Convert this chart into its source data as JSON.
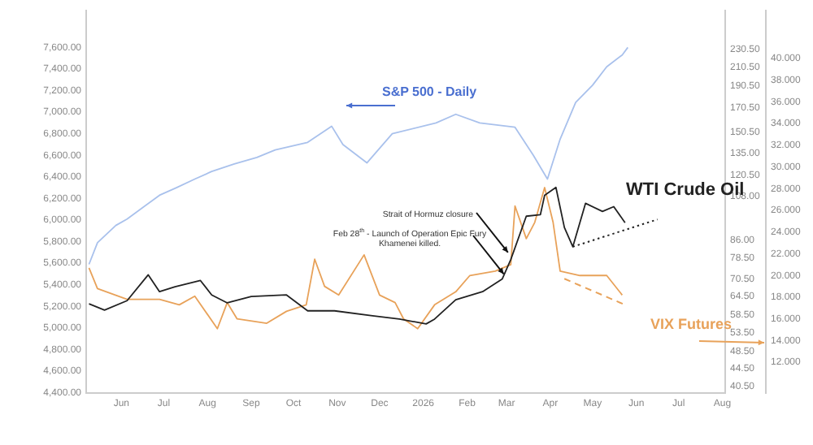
{
  "chart_data": {
    "type": "line",
    "marker": "none",
    "legend": false,
    "grid": false,
    "log": "y2",
    "annotations": [
      {
        "text": "Strait of Hormuz closure",
        "x": "2026-03-02",
        "y": 5700
      },
      {
        "text": "Feb 28$^{th}$ - Launch of Operation Epic Fury\nKhamenei killed.",
        "x": "2026-02-27",
        "y": 5500
      }
    ],
    "xlim": [
      "2025-05-07",
      "2026-08-03"
    ],
    "xticks": [
      {
        "value": "2025-06-01",
        "label": "Jun"
      },
      {
        "value": "2025-07-01",
        "label": "Jul"
      },
      {
        "value": "2025-08-01",
        "label": "Aug"
      },
      {
        "value": "2025-09-01",
        "label": "Sep"
      },
      {
        "value": "2025-10-01",
        "label": "Oct"
      },
      {
        "value": "2025-11-01",
        "label": "Nov"
      },
      {
        "value": "2025-12-01",
        "label": "Dec"
      },
      {
        "value": "2026-01-01",
        "label": "2026"
      },
      {
        "value": "2026-02-01",
        "label": "Feb"
      },
      {
        "value": "2026-03-01",
        "label": "Mar"
      },
      {
        "value": "2026-04-01",
        "label": "Apr"
      },
      {
        "value": "2026-05-01",
        "label": "May"
      },
      {
        "value": "2026-06-01",
        "label": "Jun"
      },
      {
        "value": "2026-07-01",
        "label": "Jul"
      },
      {
        "value": "2026-08-01",
        "label": "Aug"
      }
    ],
    "ylim": [
      4400,
      7940
    ],
    "yticks": [
      {
        "value": 4400,
        "label": "4,400.00"
      },
      {
        "value": 4600,
        "label": "4,600.00"
      },
      {
        "value": 4800,
        "label": "4,800.00"
      },
      {
        "value": 5000,
        "label": "5,000.00"
      },
      {
        "value": 5200,
        "label": "5,200.00"
      },
      {
        "value": 5400,
        "label": "5,400.00"
      },
      {
        "value": 5600,
        "label": "5,600.00"
      },
      {
        "value": 5800,
        "label": "5,800.00"
      },
      {
        "value": 6000,
        "label": "6,000.00"
      },
      {
        "value": 6200,
        "label": "6,200.00"
      },
      {
        "value": 6400,
        "label": "6,400.00"
      },
      {
        "value": 6600,
        "label": "6,600.00"
      },
      {
        "value": 6800,
        "label": "6,800.00"
      },
      {
        "value": 7000,
        "label": "7,000.00"
      },
      {
        "value": 7200,
        "label": "7,200.00"
      },
      {
        "value": 7400,
        "label": "7,400.00"
      },
      {
        "value": 7600,
        "label": "7,600.00"
      }
    ],
    "y2lim": [
      39.2,
      281
    ],
    "y2ticks": [
      {
        "value": 40.5,
        "label": "40.50"
      },
      {
        "value": 44.5,
        "label": "44.50"
      },
      {
        "value": 48.5,
        "label": "48.50"
      },
      {
        "value": 53.5,
        "label": "53.50"
      },
      {
        "value": 58.5,
        "label": "58.50"
      },
      {
        "value": 64.5,
        "label": "64.50"
      },
      {
        "value": 70.5,
        "label": "70.50"
      },
      {
        "value": 78.5,
        "label": "78.50"
      },
      {
        "value": 86,
        "label": "86.00"
      },
      {
        "value": 108,
        "label": "108.00"
      },
      {
        "value": 120.5,
        "label": "120.50"
      },
      {
        "value": 135,
        "label": "135.00"
      },
      {
        "value": 150.5,
        "label": "150.50"
      },
      {
        "value": 170.5,
        "label": "170.50"
      },
      {
        "value": 190.5,
        "label": "190.50"
      },
      {
        "value": 210.5,
        "label": "210.50"
      },
      {
        "value": 230.5,
        "label": "230.50"
      }
    ],
    "y3lim": [
      9.2,
      44.4
    ],
    "y3ticks": [
      {
        "value": 12,
        "label": "12.000"
      },
      {
        "value": 14,
        "label": "14.000"
      },
      {
        "value": 16,
        "label": "16.000"
      },
      {
        "value": 18,
        "label": "18.000"
      },
      {
        "value": 20,
        "label": "20.000"
      },
      {
        "value": 22,
        "label": "22.000"
      },
      {
        "value": 24,
        "label": "24.000"
      },
      {
        "value": 26,
        "label": "26.000"
      },
      {
        "value": 28,
        "label": "28.000"
      },
      {
        "value": 30,
        "label": "30.000"
      },
      {
        "value": 32,
        "label": "32.000"
      },
      {
        "value": 34,
        "label": "34.000"
      },
      {
        "value": 36,
        "label": "36.000"
      },
      {
        "value": 38,
        "label": "38.000"
      },
      {
        "value": 40,
        "label": "40.000"
      }
    ],
    "series": [
      {
        "name": "S&P 500 - Daily",
        "color": "#a9c1ec",
        "axis": "y",
        "x": [
          "2025-05-09",
          "2025-05-15",
          "2025-05-28",
          "2025-06-05",
          "2025-06-28",
          "2025-07-10",
          "2025-07-23",
          "2025-08-04",
          "2025-08-20",
          "2025-09-05",
          "2025-09-18",
          "2025-10-11",
          "2025-10-28",
          "2025-11-05",
          "2025-11-22",
          "2025-12-10",
          "2026-01-10",
          "2026-01-24",
          "2026-02-10",
          "2026-03-07",
          "2026-03-20",
          "2026-03-30",
          "2026-04-08",
          "2026-04-19",
          "2026-05-01",
          "2026-05-11",
          "2026-05-22",
          "2026-05-26"
        ],
        "values": [
          5590,
          5790,
          5950,
          6010,
          6230,
          6300,
          6380,
          6450,
          6520,
          6580,
          6650,
          6720,
          6870,
          6700,
          6530,
          6800,
          6900,
          6980,
          6900,
          6860,
          6600,
          6380,
          6750,
          7090,
          7250,
          7420,
          7530,
          7600
        ]
      },
      {
        "name": "WTI Crude Oil",
        "color": "#222222",
        "axis": "y2",
        "x": [
          "2025-05-09",
          "2025-05-20",
          "2025-06-05",
          "2025-06-20",
          "2025-06-28",
          "2025-07-09",
          "2025-07-27",
          "2025-08-04",
          "2025-08-15",
          "2025-09-01",
          "2025-09-26",
          "2025-10-11",
          "2025-10-30",
          "2025-11-26",
          "2025-12-15",
          "2026-01-03",
          "2026-01-09",
          "2026-01-24",
          "2026-02-12",
          "2026-02-26",
          "2026-03-04",
          "2026-03-15",
          "2026-03-25",
          "2026-03-28",
          "2026-04-05",
          "2026-04-11",
          "2026-04-17",
          "2026-04-26",
          "2026-05-08",
          "2026-05-16",
          "2026-05-24"
        ],
        "values": [
          62,
          60,
          63,
          72,
          66,
          67.7,
          69.9,
          64.9,
          62.3,
          64.4,
          64.9,
          59.8,
          59.8,
          58.3,
          57.3,
          55.9,
          57.3,
          63.3,
          66,
          70.5,
          77.9,
          97.4,
          98.2,
          108.5,
          113,
          91.9,
          83.2,
          104.1,
          99.8,
          102.3,
          94.2
        ]
      },
      {
        "name": "VIX Futures",
        "color": "#e8a25a",
        "axis": "y3",
        "x": [
          "2025-05-09",
          "2025-05-15",
          "2025-06-05",
          "2025-06-28",
          "2025-07-12",
          "2025-07-23",
          "2025-08-08",
          "2025-08-15",
          "2025-08-22",
          "2025-09-12",
          "2025-09-26",
          "2025-10-10",
          "2025-10-16",
          "2025-10-23",
          "2025-11-02",
          "2025-11-20",
          "2025-12-01",
          "2025-12-12",
          "2025-12-18",
          "2025-12-28",
          "2026-01-09",
          "2026-01-24",
          "2026-02-03",
          "2026-02-21",
          "2026-03-04",
          "2026-03-07",
          "2026-03-15",
          "2026-03-21",
          "2026-03-28",
          "2026-04-03",
          "2026-04-08",
          "2026-04-22",
          "2026-05-11",
          "2026-05-22"
        ],
        "values": [
          20.7,
          18.8,
          17.8,
          17.8,
          17.3,
          18.1,
          15.1,
          17.5,
          16,
          15.6,
          16.7,
          17.3,
          21.5,
          19,
          18.2,
          21.9,
          18.2,
          17.5,
          16,
          15.1,
          17.3,
          18.5,
          20,
          20.4,
          21,
          26.4,
          23.4,
          24.9,
          28.1,
          24.9,
          20.4,
          20,
          20,
          18.2
        ]
      },
      {
        "type": "line",
        "line_style": "dotted",
        "color": "#222222",
        "axis": "y2",
        "x": [
          "2026-04-17",
          "2026-06-16"
        ],
        "values": [
          83.2,
          95.8
        ]
      },
      {
        "type": "line",
        "line_style": "dashed",
        "color": "#e8a25a",
        "axis": "y3",
        "x": [
          "2026-04-11",
          "2026-05-24"
        ],
        "values": [
          19.7,
          17.3
        ]
      }
    ]
  }
}
